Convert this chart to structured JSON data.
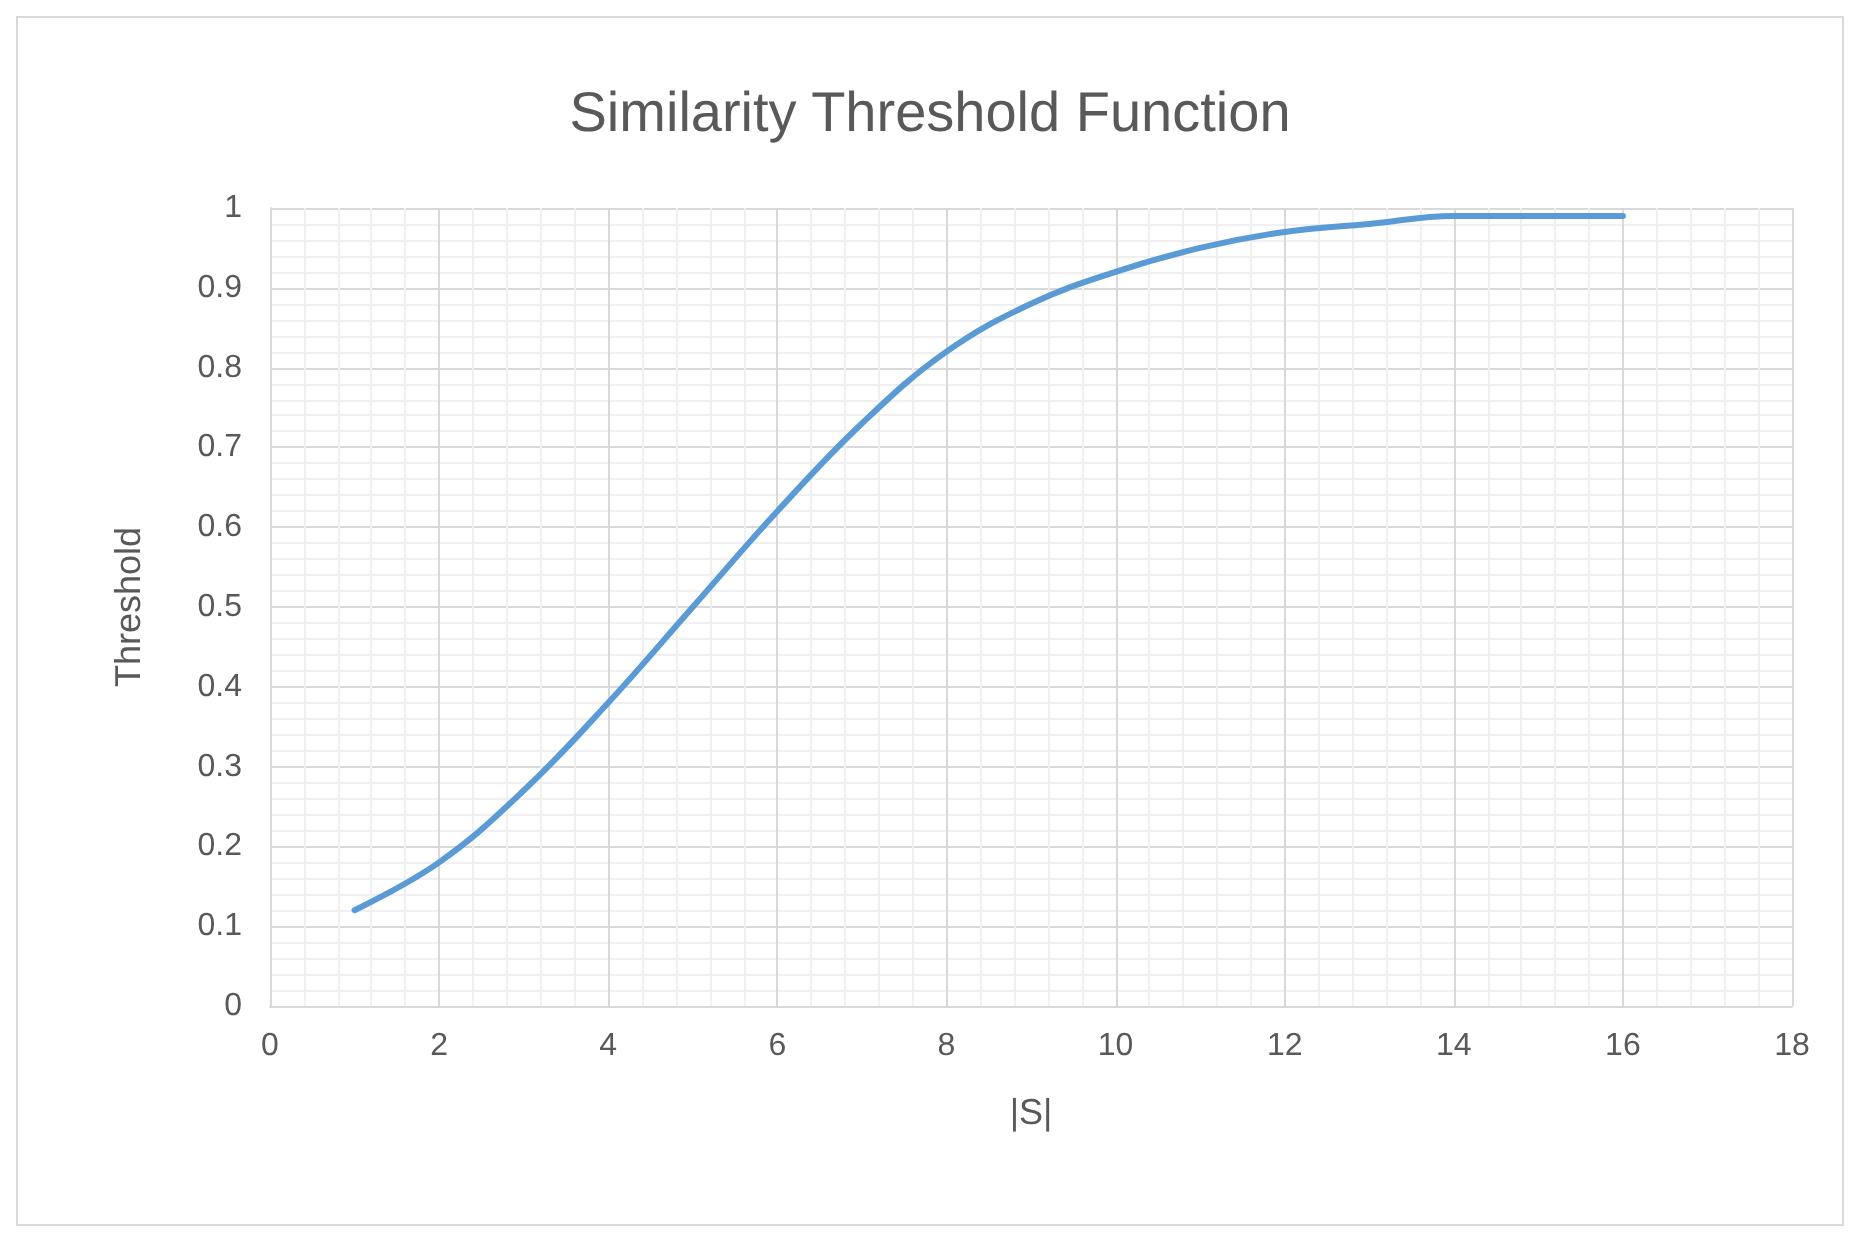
{
  "chart_data": {
    "type": "line",
    "title": "Similarity Threshold Function",
    "xlabel": "|S|",
    "ylabel": "Threshold",
    "x": [
      1,
      2,
      3,
      4,
      5,
      6,
      7,
      8,
      9,
      10,
      11,
      12,
      13,
      14,
      15,
      16
    ],
    "series": [
      {
        "color": "#5b9bd5",
        "values": [
          0.12,
          0.18,
          0.27,
          0.38,
          0.5,
          0.62,
          0.73,
          0.82,
          0.88,
          0.92,
          0.95,
          0.97,
          0.98,
          0.99,
          0.99,
          0.99
        ]
      }
    ],
    "xlim": [
      0,
      18
    ],
    "xticks": [
      0,
      2,
      4,
      6,
      8,
      10,
      12,
      14,
      16,
      18
    ],
    "ylim": [
      0,
      1
    ],
    "yticks": [
      0,
      0.1,
      0.2,
      0.3,
      0.4,
      0.5,
      0.6,
      0.7,
      0.8,
      0.9,
      1
    ],
    "grid": true,
    "marker": "none",
    "line_style": "solid"
  }
}
